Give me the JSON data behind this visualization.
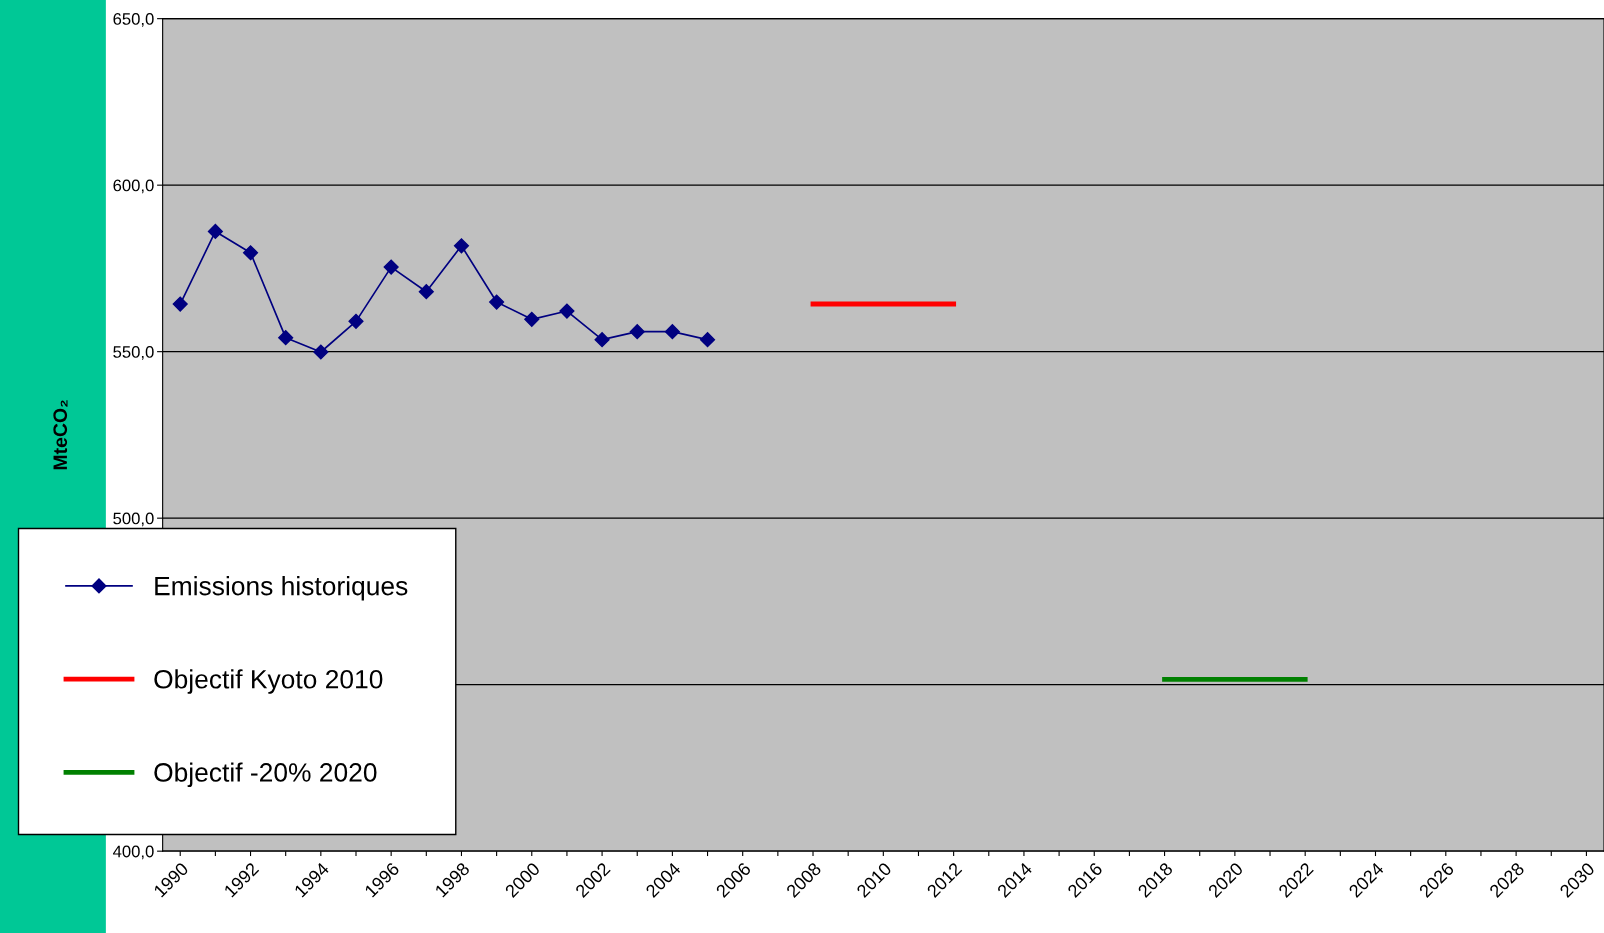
{
  "chart_data": {
    "type": "line",
    "ylabel": "MteCO₂",
    "categories": [
      "1990",
      null,
      "1992",
      null,
      "1994",
      null,
      "1996",
      null,
      "1998",
      null,
      "2000",
      null,
      "2002",
      null,
      "2004",
      null,
      "2006",
      null,
      "2008",
      null,
      "2010",
      null,
      "2012",
      null,
      "2014",
      null,
      "2016",
      null,
      "2018",
      null,
      "2020",
      null,
      "2022",
      null,
      "2024",
      null,
      "2026",
      null,
      "2028",
      null,
      "2030"
    ],
    "series": [
      {
        "name": "Emissions historiques",
        "color": "#000080",
        "marker": "diamond",
        "values": [
          564.3,
          586.1,
          579.7,
          554.2,
          549.9,
          559.1,
          575.4,
          568.0,
          581.8,
          564.9,
          559.7,
          562.2,
          553.6,
          556.0,
          556.0,
          553.6,
          null,
          null,
          null,
          null,
          null,
          null,
          null,
          null,
          null,
          null,
          null,
          null,
          null,
          null,
          null,
          null,
          null,
          null,
          null,
          null,
          null,
          null,
          null,
          null,
          null
        ]
      },
      {
        "name": "Objectif Kyoto 2010",
        "color": "#ff0000",
        "marker": "none",
        "values": [
          null,
          null,
          null,
          null,
          null,
          null,
          null,
          null,
          null,
          null,
          null,
          null,
          null,
          null,
          null,
          null,
          null,
          null,
          564.3,
          564.3,
          564.3,
          564.3,
          564.3,
          null,
          null,
          null,
          null,
          null,
          null,
          null,
          null,
          null,
          null,
          null,
          null,
          null,
          null,
          null,
          null,
          null,
          null
        ]
      },
      {
        "name": "Objectif -20% 2020",
        "color": "#008000",
        "marker": "none",
        "values": [
          null,
          null,
          null,
          null,
          null,
          null,
          null,
          null,
          null,
          null,
          null,
          null,
          null,
          null,
          null,
          null,
          null,
          null,
          null,
          null,
          null,
          null,
          null,
          null,
          null,
          null,
          null,
          null,
          451.6,
          451.6,
          451.6,
          451.6,
          451.6,
          null,
          null,
          null,
          null,
          null,
          null,
          null,
          null
        ]
      }
    ],
    "ylim": [
      400,
      650
    ],
    "yticks": [
      {
        "value": 400,
        "label": "400,0"
      },
      {
        "value": 450,
        "label": null
      },
      {
        "value": 500,
        "label": "500,0"
      },
      {
        "value": 550,
        "label": "550,0"
      },
      {
        "value": 600,
        "label": "600,0"
      },
      {
        "value": 650,
        "label": "650,0"
      }
    ],
    "grid": "y",
    "legend": "bottom left"
  }
}
